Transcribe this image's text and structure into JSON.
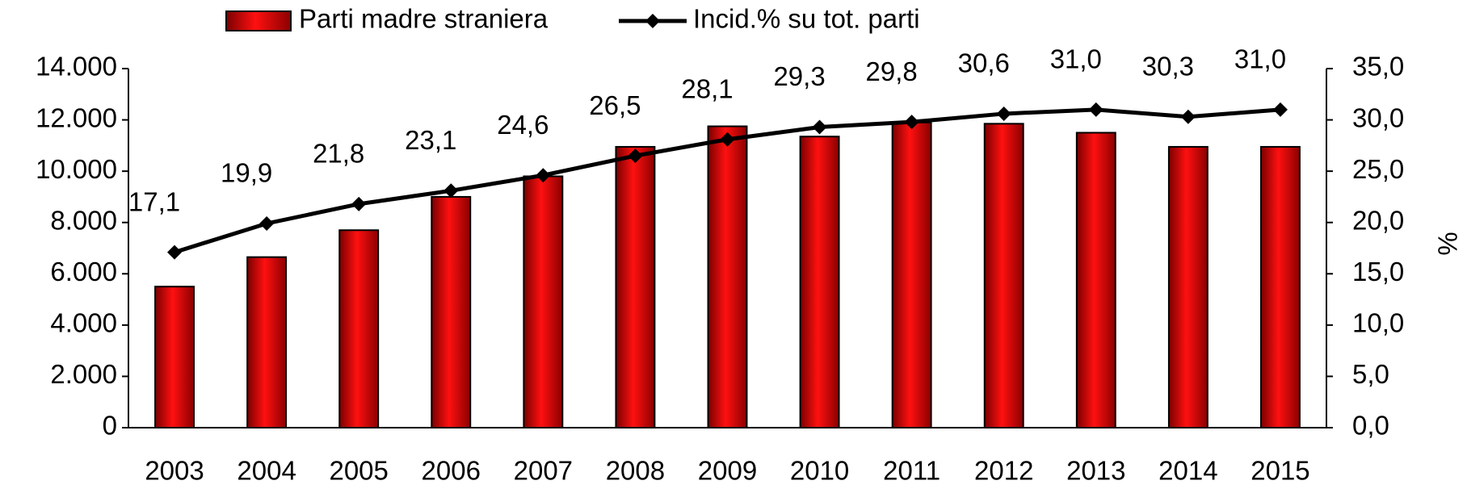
{
  "chart_data": {
    "type": "bar_line",
    "categories": [
      "2003",
      "2004",
      "2005",
      "2006",
      "2007",
      "2008",
      "2009",
      "2010",
      "2011",
      "2012",
      "2013",
      "2014",
      "2015"
    ],
    "series": [
      {
        "name": "Parti madre straniera",
        "color": "#e00000",
        "values": [
          5500,
          6650,
          7700,
          9000,
          9800,
          10950,
          11750,
          11350,
          11900,
          11850,
          11500,
          10950,
          10950
        ]
      },
      {
        "name": "Incid.% su tot. parti",
        "color": "#000000",
        "axis": "y2",
        "values": [
          17.1,
          19.9,
          21.8,
          23.1,
          24.6,
          26.5,
          28.1,
          29.3,
          29.8,
          30.6,
          31.0,
          30.3,
          31.0
        ],
        "value_labels": [
          "17,1",
          "19,9",
          "21,8",
          "23,1",
          "24,6",
          "26,5",
          "28,1",
          "29,3",
          "29,8",
          "30,6",
          "31,0",
          "30,3",
          "31,0"
        ]
      }
    ],
    "ylim": [
      0,
      14000
    ],
    "yticks": [
      {
        "value": 0,
        "label": "0"
      },
      {
        "value": 2000,
        "label": "2.000"
      },
      {
        "value": 4000,
        "label": "4.000"
      },
      {
        "value": 6000,
        "label": "6.000"
      },
      {
        "value": 8000,
        "label": "8.000"
      },
      {
        "value": 10000,
        "label": "10.000"
      },
      {
        "value": 12000,
        "label": "12.000"
      },
      {
        "value": 14000,
        "label": "14.000"
      }
    ],
    "y2lim": [
      0,
      35
    ],
    "y2ticks": [
      {
        "value": 0,
        "label": "0,0"
      },
      {
        "value": 5,
        "label": "5,0"
      },
      {
        "value": 10,
        "label": "10,0"
      },
      {
        "value": 15,
        "label": "15,0"
      },
      {
        "value": 20,
        "label": "20,0"
      },
      {
        "value": 25,
        "label": "25,0"
      },
      {
        "value": 30,
        "label": "30,0"
      },
      {
        "value": 35,
        "label": "35,0"
      }
    ],
    "y2label": "%",
    "grid": false
  }
}
